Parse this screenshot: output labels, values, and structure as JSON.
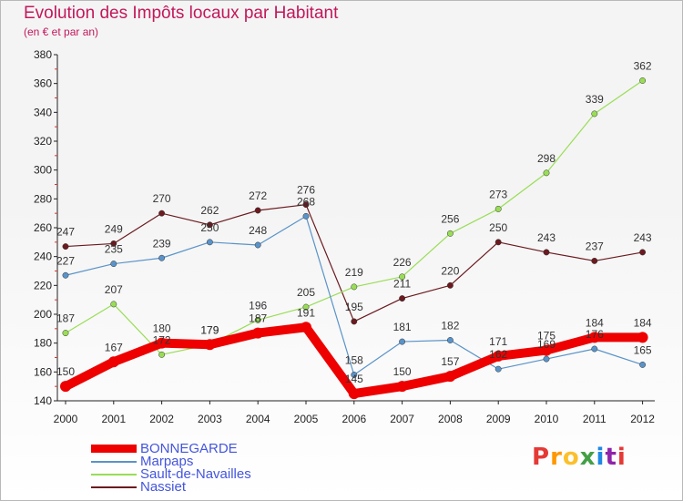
{
  "header": {
    "title": "Evolution des Impôts locaux par Habitant",
    "subtitle": "(en € et par an)"
  },
  "logo": {
    "text": "Proxiti"
  },
  "chart_data": {
    "type": "line",
    "title": "Evolution des Impôts locaux par Habitant",
    "subtitle": "(en € et par an)",
    "xlabel": "",
    "ylabel": "",
    "categories": [
      "2000",
      "2001",
      "2002",
      "2003",
      "2004",
      "2005",
      "2006",
      "2007",
      "2008",
      "2009",
      "2010",
      "2011",
      "2012"
    ],
    "ylim": [
      140,
      380
    ],
    "yticks": [
      140,
      160,
      180,
      200,
      220,
      240,
      260,
      280,
      300,
      320,
      340,
      360,
      380
    ],
    "grid": false,
    "legend_position": "bottom-left",
    "series": [
      {
        "name": "BONNEGARDE",
        "color": "#ee0000",
        "values": [
          150,
          167,
          180,
          179,
          187,
          191,
          145,
          150,
          157,
          171,
          175,
          184,
          184
        ]
      },
      {
        "name": "Marpaps",
        "color": "#5a93c8",
        "values": [
          227,
          235,
          239,
          250,
          248,
          268,
          158,
          181,
          182,
          162,
          169,
          176,
          165
        ]
      },
      {
        "name": "Sault-de-Navailles",
        "color": "#99dd55",
        "values": [
          187,
          207,
          172,
          179,
          196,
          205,
          219,
          226,
          256,
          273,
          298,
          339,
          362
        ]
      },
      {
        "name": "Nassiet",
        "color": "#6b1a1f",
        "values": [
          247,
          249,
          270,
          262,
          272,
          276,
          195,
          211,
          220,
          250,
          243,
          237,
          243
        ]
      }
    ],
    "labels": [
      {
        "series": 0,
        "values": [
          150,
          167,
          180,
          179,
          187,
          191,
          145,
          150,
          157,
          171,
          175,
          184,
          184
        ]
      },
      {
        "series": 1,
        "values": [
          227,
          235,
          239,
          250,
          248,
          268,
          158,
          181,
          182,
          162,
          169,
          176,
          165
        ]
      },
      {
        "series": 2,
        "values": [
          187,
          207,
          172,
          179,
          196,
          205,
          219,
          226,
          256,
          273,
          298,
          339,
          362
        ]
      },
      {
        "series": 3,
        "values": [
          247,
          249,
          270,
          262,
          272,
          276,
          195,
          211,
          220,
          250,
          243,
          237,
          243
        ]
      }
    ]
  }
}
